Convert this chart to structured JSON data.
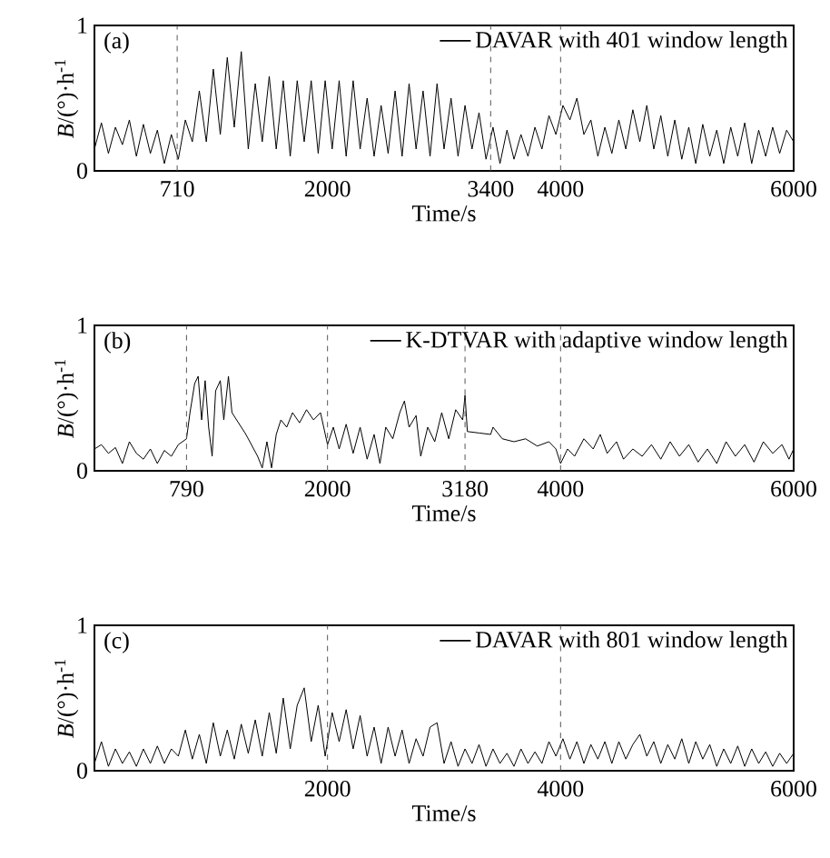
{
  "chart_data": [
    {
      "type": "line",
      "annotations": [
        "(a)"
      ],
      "xlabel": "Time/s",
      "ylabel": "*B*/(°)·h$^{-1}$",
      "xlim": [
        0,
        6000
      ],
      "ylim": [
        0,
        1
      ],
      "xticks": [
        710,
        2000,
        3400,
        4000,
        6000
      ],
      "yticks": [
        0,
        1
      ],
      "legend": "top right",
      "grid": false,
      "line_style": "solid",
      "ref_lines": [
        {
          "axis": "x",
          "value": 710,
          "color": "#555555",
          "line_style": "dashed"
        },
        {
          "axis": "x",
          "value": 3400,
          "color": "#555555",
          "line_style": "dashed"
        },
        {
          "axis": "x",
          "value": 4000,
          "color": "#555555",
          "line_style": "dashed"
        }
      ],
      "series": [
        {
          "name": "DAVAR with 401 window length",
          "color": "#000000",
          "x": [
            0,
            60,
            120,
            180,
            240,
            300,
            360,
            420,
            480,
            540,
            600,
            660,
            720,
            780,
            840,
            900,
            960,
            1020,
            1080,
            1140,
            1200,
            1260,
            1320,
            1380,
            1440,
            1500,
            1560,
            1620,
            1680,
            1740,
            1800,
            1860,
            1920,
            1980,
            2040,
            2100,
            2160,
            2220,
            2280,
            2340,
            2400,
            2460,
            2520,
            2580,
            2640,
            2700,
            2760,
            2820,
            2880,
            2940,
            3000,
            3060,
            3120,
            3180,
            3240,
            3300,
            3360,
            3420,
            3480,
            3540,
            3600,
            3660,
            3720,
            3780,
            3840,
            3900,
            3960,
            4020,
            4080,
            4140,
            4200,
            4260,
            4320,
            4380,
            4440,
            4500,
            4560,
            4620,
            4680,
            4740,
            4800,
            4860,
            4920,
            4980,
            5040,
            5100,
            5160,
            5220,
            5280,
            5340,
            5400,
            5460,
            5520,
            5580,
            5640,
            5700,
            5760,
            5820,
            5880,
            5940,
            6000
          ],
          "values": [
            0.15,
            0.33,
            0.12,
            0.3,
            0.18,
            0.35,
            0.1,
            0.32,
            0.12,
            0.28,
            0.05,
            0.25,
            0.08,
            0.35,
            0.2,
            0.55,
            0.2,
            0.7,
            0.25,
            0.78,
            0.3,
            0.82,
            0.15,
            0.6,
            0.2,
            0.65,
            0.15,
            0.62,
            0.1,
            0.62,
            0.2,
            0.62,
            0.12,
            0.62,
            0.15,
            0.62,
            0.1,
            0.62,
            0.15,
            0.5,
            0.1,
            0.45,
            0.12,
            0.55,
            0.1,
            0.6,
            0.15,
            0.55,
            0.1,
            0.6,
            0.15,
            0.5,
            0.1,
            0.45,
            0.15,
            0.4,
            0.08,
            0.3,
            0.05,
            0.28,
            0.08,
            0.25,
            0.1,
            0.3,
            0.15,
            0.38,
            0.25,
            0.45,
            0.35,
            0.5,
            0.25,
            0.35,
            0.1,
            0.3,
            0.12,
            0.35,
            0.15,
            0.42,
            0.2,
            0.45,
            0.15,
            0.38,
            0.1,
            0.35,
            0.08,
            0.3,
            0.05,
            0.32,
            0.1,
            0.28,
            0.05,
            0.3,
            0.1,
            0.33,
            0.05,
            0.28,
            0.1,
            0.3,
            0.12,
            0.28,
            0.2
          ]
        }
      ]
    },
    {
      "type": "line",
      "annotations": [
        "(b)"
      ],
      "xlabel": "Time/s",
      "ylabel": "*B*/(°)·h$^{-1}$",
      "xlim": [
        0,
        6000
      ],
      "ylim": [
        0,
        1
      ],
      "xticks": [
        790,
        2000,
        3180,
        4000,
        6000
      ],
      "yticks": [
        0,
        1
      ],
      "legend": "top right",
      "grid": false,
      "line_style": "solid",
      "ref_lines": [
        {
          "axis": "x",
          "value": 790,
          "color": "#555555",
          "line_style": "dashed"
        },
        {
          "axis": "x",
          "value": 2000,
          "color": "#555555",
          "line_style": "dashed"
        },
        {
          "axis": "x",
          "value": 3180,
          "color": "#555555",
          "line_style": "dashed"
        },
        {
          "axis": "x",
          "value": 4000,
          "color": "#555555",
          "line_style": "dashed"
        }
      ],
      "series": [
        {
          "name": "K-DTVAR with adaptive window length",
          "color": "#000000",
          "x": [
            0,
            60,
            120,
            180,
            240,
            300,
            360,
            420,
            480,
            540,
            600,
            660,
            720,
            790,
            820,
            860,
            890,
            920,
            950,
            980,
            1010,
            1040,
            1080,
            1110,
            1150,
            1180,
            1300,
            1400,
            1440,
            1480,
            1520,
            1560,
            1600,
            1650,
            1700,
            1760,
            1820,
            1880,
            1940,
            2000,
            2050,
            2100,
            2160,
            2220,
            2280,
            2340,
            2400,
            2450,
            2500,
            2560,
            2620,
            2660,
            2700,
            2760,
            2800,
            2860,
            2920,
            2980,
            3040,
            3100,
            3160,
            3180,
            3200,
            3300,
            3400,
            3420,
            3500,
            3600,
            3700,
            3800,
            3900,
            3960,
            4000,
            4060,
            4120,
            4200,
            4280,
            4340,
            4400,
            4480,
            4540,
            4620,
            4700,
            4780,
            4860,
            4940,
            5020,
            5100,
            5180,
            5260,
            5340,
            5420,
            5500,
            5580,
            5660,
            5740,
            5820,
            5900,
            5960,
            6000
          ],
          "values": [
            0.15,
            0.18,
            0.12,
            0.16,
            0.05,
            0.2,
            0.12,
            0.08,
            0.15,
            0.05,
            0.14,
            0.1,
            0.18,
            0.22,
            0.4,
            0.6,
            0.65,
            0.35,
            0.62,
            0.3,
            0.1,
            0.55,
            0.62,
            0.35,
            0.65,
            0.4,
            0.25,
            0.1,
            0.02,
            0.2,
            0.02,
            0.25,
            0.35,
            0.3,
            0.4,
            0.33,
            0.42,
            0.35,
            0.4,
            0.18,
            0.3,
            0.15,
            0.32,
            0.12,
            0.3,
            0.08,
            0.25,
            0.05,
            0.3,
            0.22,
            0.4,
            0.48,
            0.3,
            0.38,
            0.1,
            0.3,
            0.2,
            0.4,
            0.22,
            0.42,
            0.35,
            0.52,
            0.27,
            0.26,
            0.25,
            0.3,
            0.22,
            0.2,
            0.22,
            0.17,
            0.2,
            0.15,
            0.05,
            0.15,
            0.1,
            0.22,
            0.15,
            0.25,
            0.12,
            0.2,
            0.08,
            0.15,
            0.1,
            0.18,
            0.08,
            0.2,
            0.1,
            0.18,
            0.06,
            0.15,
            0.05,
            0.2,
            0.1,
            0.18,
            0.06,
            0.2,
            0.12,
            0.18,
            0.08,
            0.15
          ]
        }
      ]
    },
    {
      "type": "line",
      "annotations": [
        "(c)"
      ],
      "xlabel": "Time/s",
      "ylabel": "*B*/(°)·h$^{-1}$",
      "xlim": [
        0,
        6000
      ],
      "ylim": [
        0,
        1
      ],
      "xticks": [
        2000,
        4000,
        6000
      ],
      "yticks": [
        0,
        1
      ],
      "legend": "top right",
      "grid": false,
      "line_style": "solid",
      "ref_lines": [
        {
          "axis": "x",
          "value": 2000,
          "color": "#555555",
          "line_style": "dashed"
        },
        {
          "axis": "x",
          "value": 4000,
          "color": "#555555",
          "line_style": "dashed"
        }
      ],
      "series": [
        {
          "name": "DAVAR with 801 window length",
          "color": "#000000",
          "x": [
            0,
            60,
            120,
            180,
            240,
            300,
            360,
            420,
            480,
            540,
            600,
            660,
            720,
            780,
            840,
            900,
            960,
            1020,
            1080,
            1140,
            1200,
            1260,
            1320,
            1380,
            1440,
            1500,
            1560,
            1620,
            1680,
            1740,
            1800,
            1860,
            1920,
            1980,
            2040,
            2100,
            2160,
            2220,
            2280,
            2340,
            2400,
            2460,
            2520,
            2580,
            2640,
            2700,
            2760,
            2820,
            2880,
            2940,
            3000,
            3060,
            3120,
            3180,
            3240,
            3300,
            3360,
            3420,
            3480,
            3540,
            3600,
            3660,
            3720,
            3780,
            3840,
            3900,
            3960,
            4020,
            4080,
            4140,
            4200,
            4260,
            4320,
            4380,
            4440,
            4500,
            4560,
            4620,
            4680,
            4740,
            4800,
            4860,
            4920,
            4980,
            5040,
            5100,
            5160,
            5220,
            5280,
            5340,
            5400,
            5460,
            5520,
            5580,
            5640,
            5700,
            5760,
            5820,
            5880,
            5940,
            6000
          ],
          "values": [
            0.05,
            0.2,
            0.03,
            0.15,
            0.05,
            0.13,
            0.03,
            0.15,
            0.05,
            0.17,
            0.05,
            0.15,
            0.1,
            0.28,
            0.08,
            0.25,
            0.05,
            0.33,
            0.1,
            0.28,
            0.08,
            0.32,
            0.12,
            0.35,
            0.1,
            0.4,
            0.12,
            0.5,
            0.15,
            0.45,
            0.57,
            0.2,
            0.45,
            0.1,
            0.4,
            0.2,
            0.42,
            0.15,
            0.38,
            0.1,
            0.3,
            0.05,
            0.3,
            0.1,
            0.28,
            0.05,
            0.22,
            0.1,
            0.3,
            0.33,
            0.05,
            0.2,
            0.03,
            0.15,
            0.05,
            0.18,
            0.03,
            0.15,
            0.05,
            0.12,
            0.03,
            0.15,
            0.05,
            0.13,
            0.05,
            0.2,
            0.1,
            0.22,
            0.08,
            0.2,
            0.05,
            0.18,
            0.08,
            0.2,
            0.05,
            0.2,
            0.08,
            0.18,
            0.25,
            0.1,
            0.2,
            0.05,
            0.18,
            0.08,
            0.22,
            0.05,
            0.2,
            0.08,
            0.18,
            0.03,
            0.15,
            0.05,
            0.17,
            0.03,
            0.15,
            0.05,
            0.13,
            0.03,
            0.12,
            0.05,
            0.12
          ]
        }
      ]
    }
  ]
}
